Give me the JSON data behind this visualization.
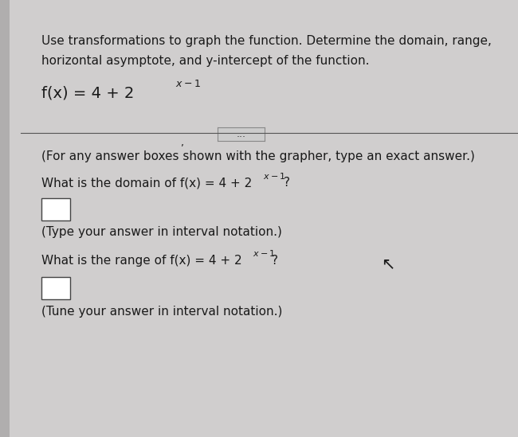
{
  "bg_color": "#d0cece",
  "left_stripe_color": "#b0aeae",
  "title_line1": "Use transformations to graph the function. Determine the domain, range,",
  "title_line2": "horizontal asymptote, and y-intercept of the function.",
  "divider_color": "#555555",
  "ellipsis_box_color": "#cccccc",
  "grapher_note": "(For any answer boxes shown with the grapher, type an exact answer.)",
  "box_color": "#ffffff",
  "type_answer_domain": "(Type your answer in interval notation.)",
  "type_answer_range": "(Tune your answer in interval notation.)",
  "font_color": "#1a1a1a",
  "font_size_title": 11,
  "font_size_body": 11,
  "font_size_function": 13
}
